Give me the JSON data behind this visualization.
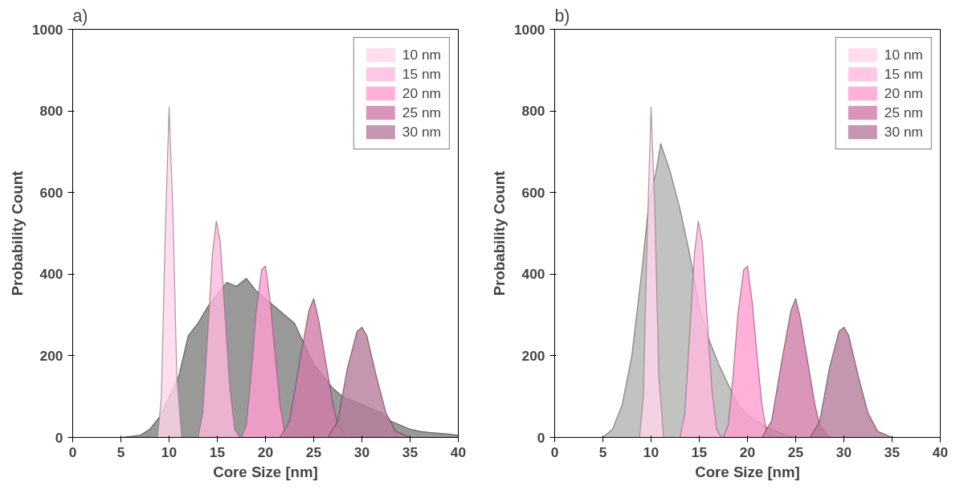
{
  "chart_data": [
    {
      "type": "area",
      "title": "a)",
      "xlabel": "Core Size [nm]",
      "ylabel": "Probability Count",
      "xlim": [
        0,
        40
      ],
      "xticks": [
        0,
        5,
        10,
        15,
        20,
        25,
        30,
        35,
        40
      ],
      "ylim": [
        0,
        1000
      ],
      "yticks": [
        0,
        200,
        400,
        600,
        800,
        1000
      ],
      "legend": "top right",
      "series": [
        {
          "color": "#7f7f7f",
          "x": [
            5,
            7,
            8,
            9,
            10,
            11,
            12,
            13,
            14,
            15,
            16,
            17,
            18,
            19,
            20,
            21,
            22,
            23,
            24,
            25,
            26,
            27,
            28,
            29,
            30,
            31,
            32,
            33,
            34,
            35,
            36,
            37,
            38,
            39,
            40
          ],
          "values": [
            0,
            5,
            20,
            50,
            100,
            150,
            250,
            280,
            320,
            350,
            380,
            370,
            390,
            360,
            340,
            320,
            300,
            280,
            230,
            180,
            150,
            120,
            100,
            90,
            80,
            70,
            60,
            40,
            30,
            20,
            15,
            12,
            10,
            8,
            5
          ]
        },
        {
          "name": "10 nm",
          "color": "#ffd6ea",
          "x": [
            8.8,
            9.2,
            9.6,
            10,
            10.4,
            10.8,
            11.3
          ],
          "values": [
            0,
            100,
            500,
            810,
            550,
            150,
            0
          ]
        },
        {
          "name": "15 nm",
          "color": "#ffb9dc",
          "x": [
            13,
            13.5,
            14,
            14.5,
            14.9,
            15.3,
            15.8,
            16.3,
            16.8,
            17.3
          ],
          "values": [
            0,
            60,
            250,
            450,
            530,
            480,
            300,
            120,
            20,
            0
          ]
        },
        {
          "name": "20 nm",
          "color": "#ff9ecf",
          "x": [
            17.5,
            18,
            18.5,
            19,
            19.6,
            20,
            20.5,
            21,
            21.5,
            22,
            22.5
          ],
          "values": [
            0,
            30,
            150,
            300,
            410,
            420,
            330,
            200,
            80,
            10,
            0
          ]
        },
        {
          "name": "25 nm",
          "color": "#d07ca8",
          "x": [
            21.5,
            22.5,
            23.5,
            24.5,
            25,
            25.5,
            26.5,
            27,
            27.5,
            28.5
          ],
          "values": [
            0,
            40,
            180,
            310,
            340,
            290,
            150,
            80,
            30,
            0
          ]
        },
        {
          "name": "30 nm",
          "color": "#b67c9b",
          "x": [
            26.5,
            27.5,
            28.5,
            29.5,
            30,
            30.5,
            31.5,
            32.5,
            33.5,
            35
          ],
          "values": [
            0,
            40,
            170,
            260,
            270,
            250,
            150,
            60,
            15,
            0
          ]
        }
      ]
    },
    {
      "type": "area",
      "title": "b)",
      "xlabel": "Core Size [nm]",
      "ylabel": "Probability Count",
      "xlim": [
        0,
        40
      ],
      "xticks": [
        0,
        5,
        10,
        15,
        20,
        25,
        30,
        35,
        40
      ],
      "ylim": [
        0,
        1000
      ],
      "yticks": [
        0,
        200,
        400,
        600,
        800,
        1000
      ],
      "legend": "top right",
      "series": [
        {
          "color": "#b3b3b3",
          "x": [
            5,
            6,
            7,
            8,
            9,
            9.8,
            10.5,
            11,
            12,
            13,
            14,
            15,
            16,
            17,
            18,
            19,
            20,
            21,
            22,
            23,
            24,
            25
          ],
          "values": [
            0,
            20,
            80,
            200,
            400,
            580,
            650,
            720,
            650,
            560,
            450,
            320,
            240,
            180,
            130,
            80,
            55,
            40,
            25,
            15,
            5,
            0
          ]
        },
        {
          "name": "10 nm",
          "color": "#ffd6ea",
          "x": [
            8.8,
            9.2,
            9.6,
            10,
            10.4,
            10.8,
            11.3
          ],
          "values": [
            0,
            100,
            500,
            810,
            550,
            150,
            0
          ]
        },
        {
          "name": "15 nm",
          "color": "#ffb9dc",
          "x": [
            13,
            13.5,
            14,
            14.5,
            14.9,
            15.3,
            15.8,
            16.3,
            16.8,
            17.3
          ],
          "values": [
            0,
            60,
            250,
            450,
            530,
            480,
            300,
            120,
            20,
            0
          ]
        },
        {
          "name": "20 nm",
          "color": "#ff9ecf",
          "x": [
            17.5,
            18,
            18.5,
            19,
            19.6,
            20,
            20.5,
            21,
            21.5,
            22,
            22.5
          ],
          "values": [
            0,
            30,
            150,
            300,
            410,
            420,
            330,
            200,
            80,
            10,
            0
          ]
        },
        {
          "name": "25 nm",
          "color": "#d07ca8",
          "x": [
            21.5,
            22.5,
            23.5,
            24.5,
            25,
            25.5,
            26.5,
            27,
            27.5,
            28.5
          ],
          "values": [
            0,
            40,
            180,
            310,
            340,
            290,
            150,
            80,
            30,
            0
          ]
        },
        {
          "name": "30 nm",
          "color": "#b67c9b",
          "x": [
            26.5,
            27.5,
            28.5,
            29.5,
            30,
            30.5,
            31.5,
            32.5,
            33.5,
            35
          ],
          "values": [
            0,
            40,
            170,
            260,
            270,
            250,
            150,
            60,
            15,
            0
          ]
        }
      ]
    }
  ]
}
